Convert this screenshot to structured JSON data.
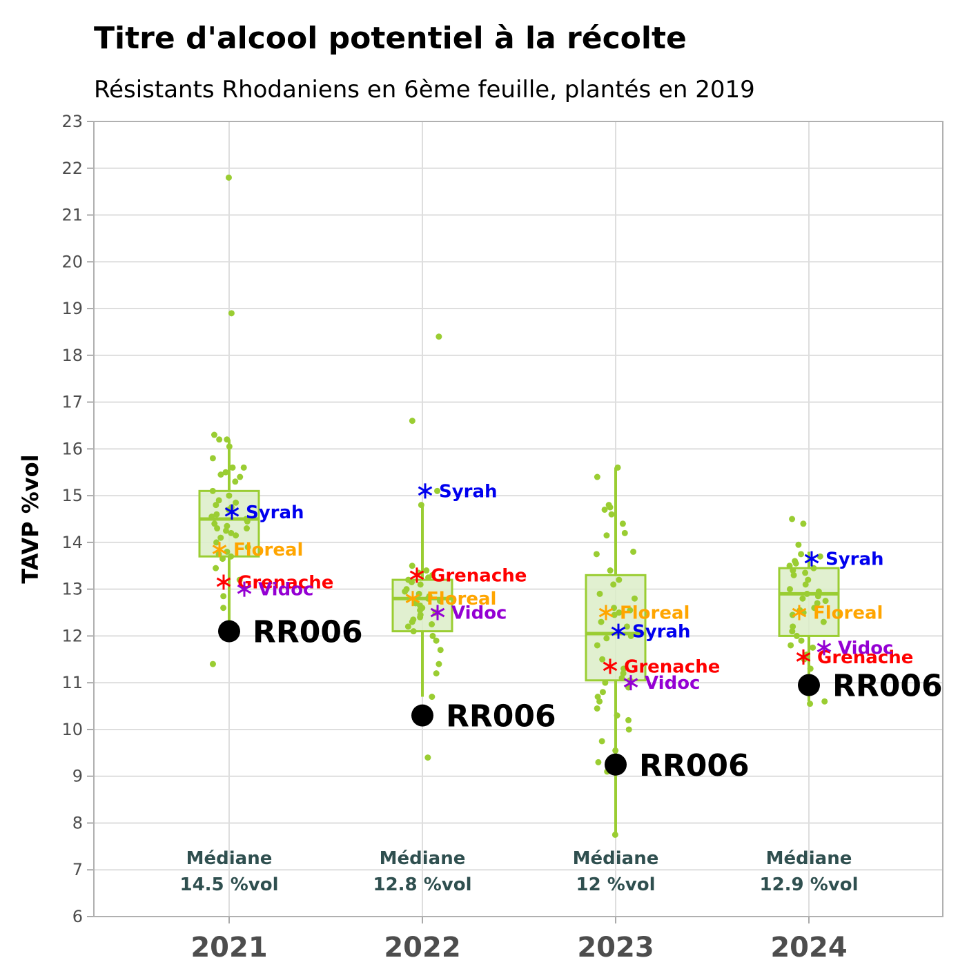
{
  "chart_data": {
    "type": "boxplot",
    "title": "Titre d'alcool potentiel à la récolte",
    "subtitle": "Résistants Rhodaniens en 6ème feuille, plantés en 2019",
    "ylabel": "TAVP %vol",
    "xlabel": "",
    "ylim": [
      6,
      23
    ],
    "yticks": [
      "6",
      "7",
      "8",
      "9",
      "10",
      "11",
      "12",
      "13",
      "14",
      "15",
      "16",
      "17",
      "18",
      "19",
      "20",
      "21",
      "22",
      "23"
    ],
    "grid": true,
    "categories": [
      "2021",
      "2022",
      "2023",
      "2024"
    ],
    "boxes": [
      {
        "q1": 13.7,
        "median": 14.5,
        "q3": 15.1,
        "whisker_low": 12.3,
        "whisker_high": 16.2
      },
      {
        "q1": 12.1,
        "median": 12.8,
        "q3": 13.2,
        "whisker_low": 10.7,
        "whisker_high": 14.8
      },
      {
        "q1": 11.05,
        "median": 12.05,
        "q3": 13.3,
        "whisker_low": 7.75,
        "whisker_high": 15.6
      },
      {
        "q1": 12.0,
        "median": 12.9,
        "q3": 13.45,
        "whisker_low": 10.6,
        "whisker_high": 13.8
      }
    ],
    "median_labels": [
      {
        "line1": "Médiane",
        "line2": "14.5 %vol"
      },
      {
        "line1": "Médiane",
        "line2": "12.8 %vol"
      },
      {
        "line1": "Médiane",
        "line2": "12 %vol"
      },
      {
        "line1": "Médiane",
        "line2": "12.9 %vol"
      }
    ],
    "jitter_points": [
      [
        21.8,
        18.9,
        16.3,
        16.2,
        16.2,
        16.05,
        15.8,
        15.6,
        15.6,
        15.5,
        15.45,
        15.4,
        15.3,
        15.1,
        15.0,
        14.9,
        14.85,
        14.8,
        14.75,
        14.7,
        14.6,
        14.55,
        14.5,
        14.45,
        14.4,
        14.35,
        14.3,
        14.3,
        14.25,
        14.2,
        14.15,
        14.1,
        14.0,
        13.9,
        13.8,
        13.75,
        13.7,
        13.65,
        13.45,
        13.2,
        12.85,
        12.6,
        11.4
      ],
      [
        18.4,
        16.6,
        15.1,
        14.8,
        13.5,
        13.4,
        13.35,
        13.3,
        13.25,
        13.2,
        13.15,
        13.1,
        13.0,
        12.95,
        12.9,
        12.85,
        12.8,
        12.75,
        12.7,
        12.65,
        12.6,
        12.55,
        12.5,
        12.45,
        12.4,
        12.35,
        12.3,
        12.25,
        12.2,
        12.1,
        12.0,
        11.9,
        11.7,
        11.4,
        11.2,
        10.7,
        9.4
      ],
      [
        15.6,
        15.4,
        14.8,
        14.75,
        14.7,
        14.6,
        14.4,
        14.2,
        14.15,
        13.8,
        13.75,
        13.4,
        13.2,
        13.1,
        12.9,
        12.8,
        12.6,
        12.55,
        12.5,
        12.45,
        12.3,
        12.2,
        12.0,
        11.95,
        11.8,
        11.5,
        11.3,
        11.2,
        11.1,
        11.05,
        11.0,
        10.9,
        10.8,
        10.7,
        10.6,
        10.45,
        10.3,
        10.2,
        10.0,
        9.75,
        9.55,
        9.3,
        9.1,
        7.75
      ],
      [
        14.5,
        14.4,
        13.95,
        13.75,
        13.7,
        13.6,
        13.55,
        13.5,
        13.45,
        13.4,
        13.35,
        13.3,
        13.2,
        13.1,
        13.0,
        12.95,
        12.9,
        12.85,
        12.8,
        12.75,
        12.7,
        12.6,
        12.55,
        12.5,
        12.45,
        12.3,
        12.2,
        12.1,
        12.0,
        11.9,
        11.8,
        11.75,
        11.6,
        11.5,
        11.3,
        10.6,
        10.55
      ]
    ],
    "reference_series": [
      {
        "name": "Syrah",
        "color": "#0000ee",
        "values": [
          14.65,
          15.1,
          12.1,
          13.65
        ]
      },
      {
        "name": "Floreal",
        "color": "#ffa500",
        "values": [
          13.85,
          12.8,
          12.5,
          12.5
        ]
      },
      {
        "name": "Grenache",
        "color": "#ff0000",
        "values": [
          13.15,
          13.3,
          11.35,
          11.55
        ]
      },
      {
        "name": "Vidoc",
        "color": "#9400d3",
        "values": [
          13.0,
          12.5,
          11.0,
          11.75
        ]
      }
    ],
    "highlight": {
      "name": "RR006",
      "color": "#000000",
      "values": [
        12.1,
        10.3,
        9.25,
        10.95
      ]
    },
    "colors": {
      "box_stroke": "#9acd32",
      "box_fill": "#dcedc8",
      "points": "#9acd32",
      "median_text": "#2f4f4f",
      "axis_text": "#4d4d4d",
      "grid": "#dedede"
    }
  }
}
